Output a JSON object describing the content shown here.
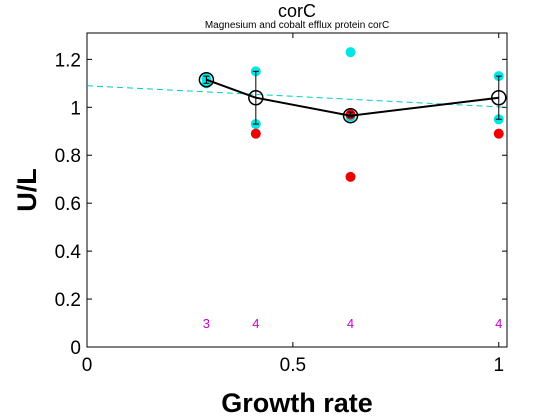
{
  "chart_data": {
    "type": "scatter",
    "title": "corC",
    "subtitle": "Magnesium and cobalt efflux protein corC",
    "xlabel": "Growth rate",
    "ylabel": "U/L",
    "xlim": [
      0,
      1.02
    ],
    "ylim": [
      0,
      1.31
    ],
    "xticks": [
      0,
      0.5,
      1
    ],
    "xtick_labels": [
      "0",
      "0.5",
      "1"
    ],
    "yticks": [
      0,
      0.2,
      0.4,
      0.6,
      0.8,
      1.0,
      1.2
    ],
    "ytick_labels": [
      "0",
      "0.2",
      "0.4",
      "0.6",
      "0.8",
      "1",
      "1.2"
    ],
    "grid": false,
    "colors": {
      "cyan": "#00e5e5",
      "red": "#ee0000",
      "mean_line": "#000000",
      "fit_line": "#00cccc",
      "count_labels": "#cc00cc"
    },
    "series": [
      {
        "marker": "filled-circle",
        "color": "cyan",
        "x": [
          0.29,
          0.29,
          0.41,
          0.41,
          0.64,
          0.64,
          1.0,
          1.0
        ],
        "y": [
          1.1,
          1.12,
          1.15,
          0.93,
          1.23,
          0.96,
          1.13,
          0.95
        ]
      },
      {
        "marker": "filled-circle",
        "color": "red",
        "x": [
          0.41,
          0.64,
          0.64,
          1.0
        ],
        "y": [
          0.89,
          0.71,
          0.97,
          0.89
        ]
      },
      {
        "marker": "open-circle-line",
        "color": "mean_line",
        "x": [
          0.29,
          0.41,
          0.64,
          1.0
        ],
        "y": [
          1.115,
          1.04,
          0.965,
          1.04
        ],
        "error_low": [
          1.1,
          0.93,
          0.96,
          0.95
        ],
        "error_high": [
          1.13,
          1.15,
          0.98,
          1.13
        ]
      },
      {
        "marker": "dashed-line",
        "color": "fit_line",
        "x": [
          0,
          1.02
        ],
        "y": [
          1.09,
          1.0
        ]
      }
    ],
    "counts": [
      {
        "x": 0.29,
        "label": "3"
      },
      {
        "x": 0.41,
        "label": "4"
      },
      {
        "x": 0.64,
        "label": "4"
      },
      {
        "x": 1.0,
        "label": "4"
      }
    ],
    "count_y": 0.1
  }
}
